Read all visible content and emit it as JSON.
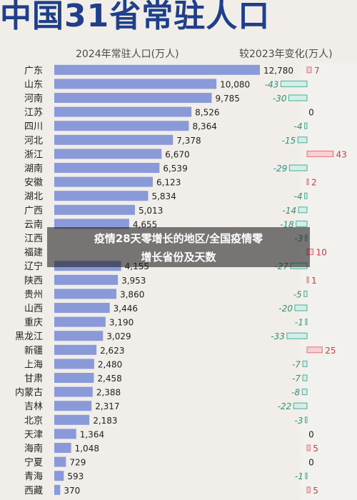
{
  "title": "中国31省常驻人口",
  "header_left": "2024年常驻人口(万人)",
  "header_right": "较2023年变化(万人)",
  "overlay": {
    "line1": "疫情28天零增长的地区/全国疫情零",
    "line2": "增长省份及天数"
  },
  "colors": {
    "title": "#1f3f8a",
    "bar": "#8a9ad9",
    "increase": "#e0737a",
    "decrease": "#4ab09a",
    "overlay": "#1e1e1e"
  },
  "chart_data": {
    "type": "bar",
    "categories": [
      "广东",
      "山东",
      "河南",
      "江苏",
      "四川",
      "河北",
      "浙江",
      "湖南",
      "安徽",
      "湖北",
      "广西",
      "云南",
      "江西",
      "福建",
      "辽宁",
      "陕西",
      "贵州",
      "山西",
      "重庆",
      "黑龙江",
      "新疆",
      "上海",
      "甘肃",
      "内蒙古",
      "吉林",
      "北京",
      "天津",
      "海南",
      "宁夏",
      "青海",
      "西藏"
    ],
    "series": [
      {
        "name": "2024年常驻人口(万人)",
        "values": [
          12780,
          10080,
          9785,
          8526,
          8364,
          7378,
          6670,
          6539,
          6123,
          5834,
          5013,
          4655,
          null,
          null,
          4155,
          3953,
          3860,
          3446,
          3190,
          3029,
          2623,
          2480,
          2458,
          2388,
          2317,
          2183,
          1364,
          1048,
          729,
          593,
          370
        ],
        "labels": [
          "12,780",
          "10,080",
          "9,785",
          "8,526",
          "8,364",
          "7,378",
          "6,670",
          "6,539",
          "6,123",
          "5,834",
          "5,013",
          "4,655",
          "",
          "",
          "4,155",
          "3,953",
          "3,860",
          "3,446",
          "3,190",
          "3,029",
          "2,623",
          "2,480",
          "2,458",
          "2,388",
          "2,317",
          "2,183",
          "1,364",
          "1,048",
          "729",
          "593",
          "370"
        ]
      },
      {
        "name": "较2023年变化(万人)",
        "values": [
          7,
          -43,
          -30,
          0,
          -4,
          -15,
          43,
          -29,
          2,
          -4,
          -14,
          -18,
          -3,
          10,
          -27,
          1,
          -5,
          -20,
          -1,
          -33,
          25,
          -7,
          -7,
          -8,
          -22,
          -3,
          0,
          5,
          0,
          -1,
          5
        ],
        "labels": [
          "7",
          "-43",
          "-30",
          "0",
          "-4",
          "-15",
          "43",
          "-29",
          "2",
          "-4",
          "-14",
          "-18",
          "-3",
          "10",
          "-27",
          "1",
          "-5",
          "-20",
          "-1",
          "-33",
          "25",
          "-7",
          "-7",
          "-8",
          "-22",
          "-3",
          "0",
          "5",
          "0",
          "-1",
          "5"
        ]
      }
    ]
  }
}
